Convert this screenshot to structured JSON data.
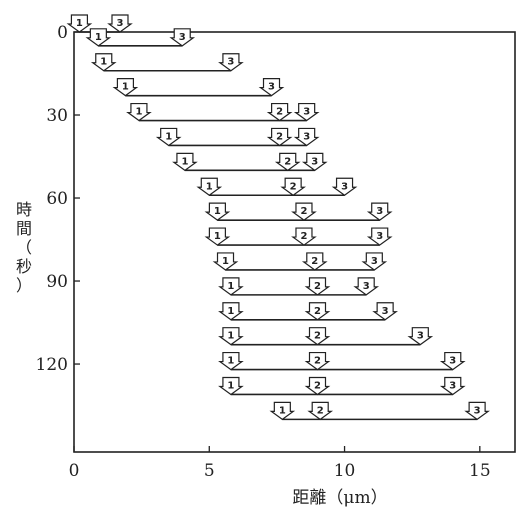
{
  "chart_data": {
    "type": "scatter",
    "xlabel": "距離（μm）",
    "ylabel": "時間（秒）",
    "xlim": [
      0,
      16.3
    ],
    "ylim": [
      0,
      148
    ],
    "x_ticks": [
      0,
      5,
      10,
      15
    ],
    "y_ticks": [
      0,
      30,
      60,
      90,
      120
    ],
    "y_axis_inverted": true,
    "marker": "downward arrow labeled with marker number",
    "marker_labels": [
      "1",
      "2",
      "3"
    ],
    "rows": [
      {
        "time": 0,
        "m1": 0.2,
        "m2": null,
        "m3": 1.7
      },
      {
        "time": 5,
        "m1": 0.9,
        "m2": null,
        "m3": 4.0
      },
      {
        "time": 14,
        "m1": 1.1,
        "m2": null,
        "m3": 5.8
      },
      {
        "time": 23,
        "m1": 1.9,
        "m2": null,
        "m3": 7.3
      },
      {
        "time": 32,
        "m1": 2.4,
        "m2": 7.6,
        "m3": 8.6
      },
      {
        "time": 41,
        "m1": 3.5,
        "m2": 7.6,
        "m3": 8.6
      },
      {
        "time": 50,
        "m1": 4.1,
        "m2": 7.9,
        "m3": 8.9
      },
      {
        "time": 59,
        "m1": 5.0,
        "m2": 8.1,
        "m3": 10.0
      },
      {
        "time": 68,
        "m1": 5.3,
        "m2": 8.5,
        "m3": 11.3
      },
      {
        "time": 77,
        "m1": 5.3,
        "m2": 8.5,
        "m3": 11.3
      },
      {
        "time": 86,
        "m1": 5.6,
        "m2": 8.9,
        "m3": 11.1
      },
      {
        "time": 95,
        "m1": 5.8,
        "m2": 9.0,
        "m3": 10.8
      },
      {
        "time": 104,
        "m1": 5.8,
        "m2": 9.0,
        "m3": 11.5
      },
      {
        "time": 113,
        "m1": 5.8,
        "m2": 9.0,
        "m3": 12.8
      },
      {
        "time": 122,
        "m1": 5.8,
        "m2": 9.0,
        "m3": 14.0
      },
      {
        "time": 131,
        "m1": 5.8,
        "m2": 9.0,
        "m3": 14.0
      },
      {
        "time": 140,
        "m1": 7.7,
        "m2": 9.1,
        "m3": 14.9
      }
    ]
  }
}
